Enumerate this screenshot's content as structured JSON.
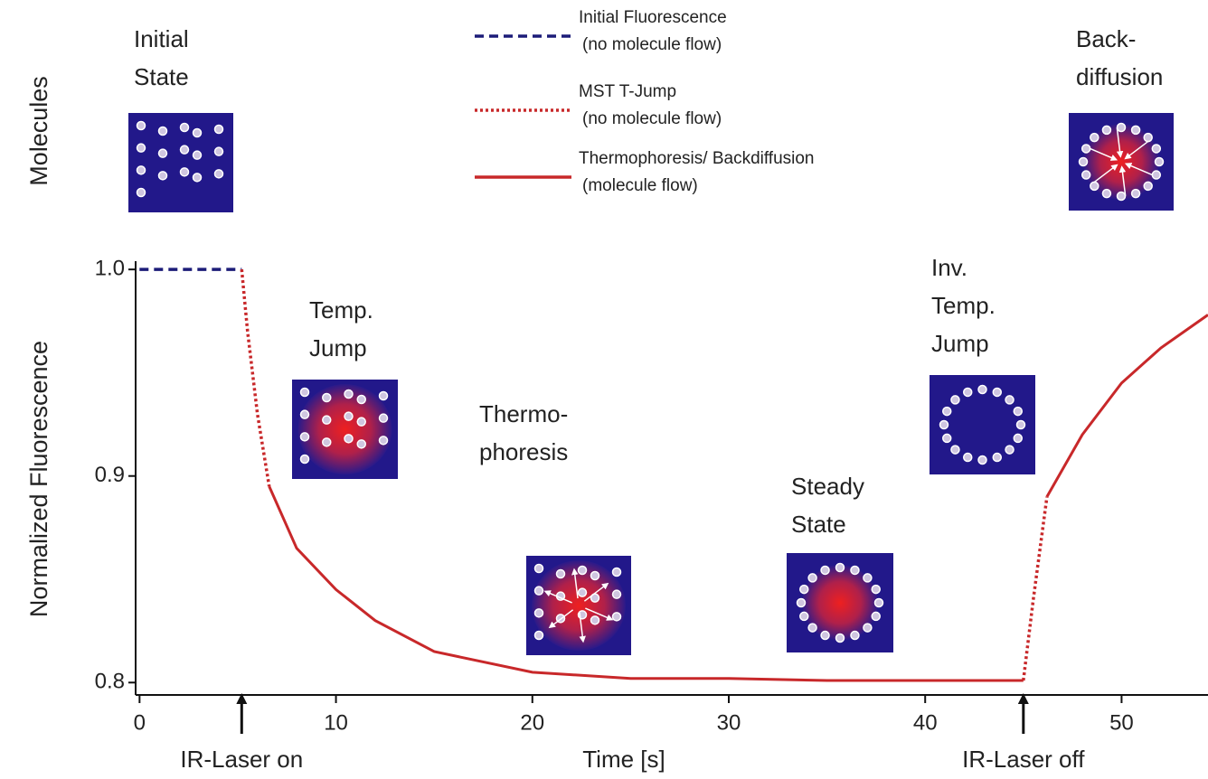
{
  "chart_data": {
    "type": "line",
    "y_label_top": "Molecules",
    "y_label": "Normalized Fluorescence",
    "x_label": "Time [s]",
    "xlim": [
      -0.2,
      54.4
    ],
    "xticks": [
      0,
      10,
      20,
      30,
      40,
      50
    ],
    "ylim": [
      0.794,
      1.004
    ],
    "yticks": [
      {
        "value": 0.8,
        "label": "0.8"
      },
      {
        "value": 0.9,
        "label": "0.9"
      },
      {
        "value": 1.0,
        "label": "1.0"
      }
    ],
    "series": [
      {
        "name": "Initial Fluorescence",
        "description": "(no molecule flow)",
        "color": "#1c1c78",
        "dash": "dashed",
        "x": [
          0,
          5.2
        ],
        "values": [
          1.0,
          1.0
        ]
      },
      {
        "name": "MST T-Jump",
        "description": "(no molecule flow)",
        "color": "#c8282a",
        "dash": "dotted",
        "x": [
          5.2,
          5.5,
          6.0,
          6.6,
          null,
          45.0,
          45.5,
          46.2
        ],
        "values": [
          1.0,
          0.97,
          0.93,
          0.895,
          null,
          0.801,
          0.84,
          0.89
        ]
      },
      {
        "name": "Thermophoresis/ Backdiffusion",
        "description": "(molecule flow)",
        "color": "#c8282a",
        "dash": "solid",
        "x": [
          6.6,
          8,
          10,
          12,
          15,
          20,
          25,
          30,
          35,
          40,
          45.0,
          null,
          46.2,
          48,
          50,
          52,
          54.4
        ],
        "values": [
          0.895,
          0.865,
          0.845,
          0.83,
          0.815,
          0.805,
          0.802,
          0.802,
          0.801,
          0.801,
          0.801,
          null,
          0.89,
          0.92,
          0.945,
          0.962,
          0.978
        ]
      }
    ],
    "events": [
      {
        "x": 5.2,
        "label": "IR-Laser on"
      },
      {
        "x": 45.0,
        "label": "IR-Laser off"
      }
    ],
    "annotations": [
      {
        "lines": [
          "Initial",
          "State"
        ]
      },
      {
        "lines": [
          "Back-",
          "diffusion"
        ]
      },
      {
        "lines": [
          "Temp.",
          "Jump"
        ]
      },
      {
        "lines": [
          "Thermo-",
          "phoresis"
        ]
      },
      {
        "lines": [
          "Steady",
          "State"
        ]
      },
      {
        "lines": [
          "Inv.",
          "Temp.",
          "Jump"
        ]
      }
    ]
  }
}
